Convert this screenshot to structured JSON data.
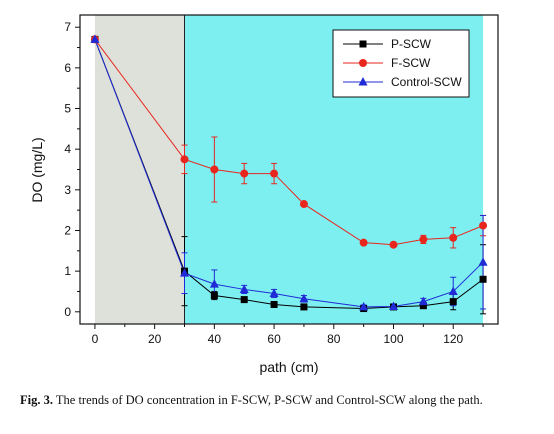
{
  "caption": {
    "label": "Fig. 3.",
    "text": "The trends of DO concentration in F-SCW, P-SCW and Control-SCW along the path."
  },
  "chart_data": {
    "type": "line",
    "xlabel": "path (cm)",
    "ylabel": "DO (mg/L)",
    "xlim": [
      -5,
      135
    ],
    "ylim": [
      -0.3,
      7.3
    ],
    "xticks": [
      0,
      20,
      40,
      60,
      80,
      100,
      120
    ],
    "yticks": [
      0,
      1,
      2,
      3,
      4,
      5,
      6,
      7
    ],
    "grid": false,
    "legend_position": "top-right",
    "regions": [
      {
        "x_from": 0,
        "x_to": 30,
        "color": "#dde1da"
      },
      {
        "x_from": 30,
        "x_to": 130,
        "color": "#7eeff0"
      }
    ],
    "series": [
      {
        "name": "P-SCW",
        "color": "#000000",
        "marker": "square",
        "x": [
          0,
          30,
          40,
          50,
          60,
          70,
          90,
          100,
          110,
          120,
          130
        ],
        "y": [
          6.7,
          1.0,
          0.4,
          0.3,
          0.18,
          0.12,
          0.08,
          0.12,
          0.15,
          0.25,
          0.8
        ],
        "err": [
          0.05,
          0.85,
          0.1,
          0.05,
          0.05,
          0.05,
          0.03,
          0.05,
          0.05,
          0.2,
          0.85
        ]
      },
      {
        "name": "F-SCW",
        "color": "#e8261e",
        "marker": "circle",
        "x": [
          0,
          30,
          40,
          50,
          60,
          70,
          90,
          100,
          110,
          120,
          130
        ],
        "y": [
          6.7,
          3.75,
          3.5,
          3.4,
          3.4,
          2.65,
          1.7,
          1.65,
          1.78,
          1.82,
          2.12
        ],
        "err": [
          0.05,
          0.35,
          0.8,
          0.25,
          0.25,
          0.05,
          0.05,
          0.05,
          0.1,
          0.25,
          0.25
        ]
      },
      {
        "name": "Control-SCW",
        "color": "#1f2bd6",
        "marker": "triangle",
        "x": [
          0,
          30,
          40,
          50,
          60,
          70,
          90,
          100,
          110,
          120,
          130
        ],
        "y": [
          6.7,
          0.95,
          0.68,
          0.55,
          0.45,
          0.32,
          0.12,
          0.13,
          0.25,
          0.5,
          1.22
        ],
        "err": [
          0.05,
          0.5,
          0.35,
          0.1,
          0.1,
          0.08,
          0.05,
          0.05,
          0.08,
          0.35,
          1.15
        ]
      }
    ]
  }
}
